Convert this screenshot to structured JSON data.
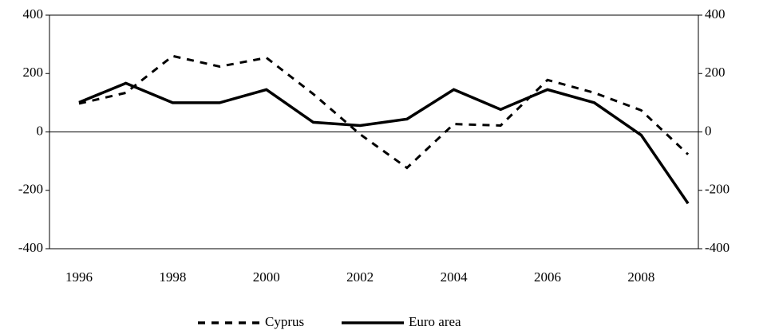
{
  "chart_data": {
    "type": "line",
    "x": [
      1996,
      1997,
      1998,
      1999,
      2000,
      2001,
      2002,
      2003,
      2004,
      2005,
      2006,
      2007,
      2008,
      2009
    ],
    "series": [
      {
        "name": "Cyprus",
        "color": "#000000",
        "dash": true,
        "values": [
          97,
          134,
          260,
          224,
          254,
          130,
          -8,
          -123,
          27,
          22,
          178,
          134,
          74,
          -77
        ]
      },
      {
        "name": "Euro area",
        "color": "#000000",
        "dash": false,
        "values": [
          101,
          167,
          100,
          100,
          145,
          33,
          22,
          44,
          145,
          77,
          145,
          100,
          -11,
          -245
        ]
      }
    ],
    "xlim": [
      1995.37,
      2009.22
    ],
    "xticks": [
      1996,
      1998,
      2000,
      2002,
      2004,
      2006,
      2008
    ],
    "ylim": [
      -400,
      400
    ],
    "yticks": [
      -400,
      -200,
      0,
      200,
      400
    ],
    "y2lim": [
      -400,
      400
    ],
    "y2ticks": [
      -400,
      -200,
      0,
      200,
      400
    ],
    "legend": "bottom"
  }
}
